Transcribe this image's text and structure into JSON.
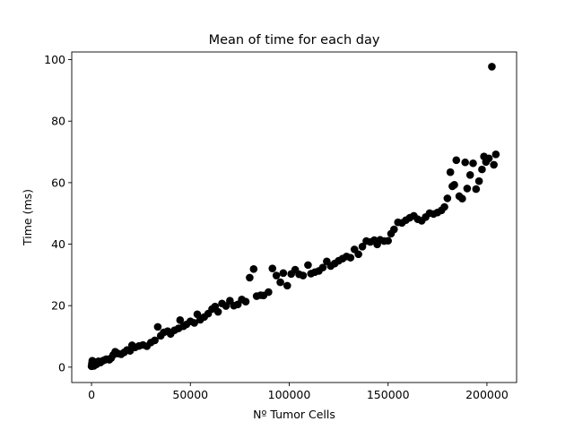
{
  "chart_data": {
    "type": "scatter",
    "title": "Mean of time for each day",
    "xlabel": "Nº Tumor Cells",
    "ylabel": "Time (ms)",
    "xlim": [
      -10000,
      215000
    ],
    "ylim": [
      -5,
      102.5
    ],
    "xticks": [
      0,
      50000,
      100000,
      150000,
      200000
    ],
    "yticks": [
      0,
      20,
      40,
      60,
      80,
      100
    ],
    "marker_color": "#000000",
    "series": [
      {
        "points": [
          [
            0,
            0.3
          ],
          [
            200,
            1.2
          ],
          [
            400,
            2.1
          ],
          [
            600,
            0.8
          ],
          [
            900,
            1.7
          ],
          [
            1200,
            0.4
          ],
          [
            1500,
            1.0
          ],
          [
            2000,
            1.6
          ],
          [
            2500,
            0.9
          ],
          [
            3000,
            1.4
          ],
          [
            3500,
            1.9
          ],
          [
            4500,
            1.5
          ],
          [
            5500,
            2.0
          ],
          [
            6500,
            2.3
          ],
          [
            7500,
            2.6
          ],
          [
            9000,
            2.4
          ],
          [
            10000,
            3.0
          ],
          [
            11000,
            4.0
          ],
          [
            12000,
            5.0
          ],
          [
            13500,
            4.4
          ],
          [
            15000,
            4.2
          ],
          [
            16500,
            4.8
          ],
          [
            18000,
            5.6
          ],
          [
            19500,
            5.3
          ],
          [
            20500,
            7.1
          ],
          [
            22000,
            6.4
          ],
          [
            24000,
            6.9
          ],
          [
            26000,
            7.2
          ],
          [
            28000,
            6.8
          ],
          [
            30000,
            8.0
          ],
          [
            32000,
            8.7
          ],
          [
            33500,
            13.1
          ],
          [
            35000,
            10.2
          ],
          [
            36500,
            11.3
          ],
          [
            38500,
            11.7
          ],
          [
            40000,
            10.8
          ],
          [
            42000,
            12.0
          ],
          [
            44000,
            12.6
          ],
          [
            44800,
            15.3
          ],
          [
            46500,
            13.3
          ],
          [
            48000,
            13.9
          ],
          [
            50000,
            14.9
          ],
          [
            52000,
            14.4
          ],
          [
            53500,
            17.2
          ],
          [
            55000,
            15.4
          ],
          [
            57000,
            16.3
          ],
          [
            59000,
            17.4
          ],
          [
            61000,
            18.9
          ],
          [
            62500,
            19.7
          ],
          [
            64000,
            18.0
          ],
          [
            66000,
            20.7
          ],
          [
            68000,
            19.9
          ],
          [
            70000,
            21.6
          ],
          [
            72000,
            20.0
          ],
          [
            74000,
            20.4
          ],
          [
            76000,
            22.0
          ],
          [
            78000,
            21.3
          ],
          [
            80000,
            29.1
          ],
          [
            82000,
            31.9
          ],
          [
            83500,
            23.1
          ],
          [
            85500,
            23.4
          ],
          [
            87000,
            23.3
          ],
          [
            89500,
            24.4
          ],
          [
            91500,
            32.1
          ],
          [
            93500,
            29.8
          ],
          [
            95500,
            27.6
          ],
          [
            97000,
            30.6
          ],
          [
            99000,
            26.5
          ],
          [
            101000,
            30.3
          ],
          [
            103000,
            31.7
          ],
          [
            105000,
            30.2
          ],
          [
            107000,
            29.8
          ],
          [
            109500,
            33.2
          ],
          [
            111000,
            30.4
          ],
          [
            113000,
            30.9
          ],
          [
            115000,
            31.3
          ],
          [
            117000,
            32.4
          ],
          [
            119000,
            34.4
          ],
          [
            121000,
            32.9
          ],
          [
            123000,
            33.7
          ],
          [
            125000,
            34.6
          ],
          [
            127000,
            35.3
          ],
          [
            129000,
            36.0
          ],
          [
            131000,
            35.6
          ],
          [
            133000,
            38.3
          ],
          [
            135000,
            36.7
          ],
          [
            137000,
            39.2
          ],
          [
            139000,
            41.0
          ],
          [
            141000,
            40.7
          ],
          [
            143000,
            41.3
          ],
          [
            144500,
            39.9
          ],
          [
            146000,
            41.4
          ],
          [
            148000,
            41.0
          ],
          [
            150000,
            41.1
          ],
          [
            151500,
            43.4
          ],
          [
            153000,
            44.8
          ],
          [
            155000,
            47.1
          ],
          [
            157000,
            46.9
          ],
          [
            159000,
            47.8
          ],
          [
            161000,
            48.6
          ],
          [
            163000,
            49.2
          ],
          [
            165000,
            48.1
          ],
          [
            167000,
            47.6
          ],
          [
            169000,
            48.8
          ],
          [
            171000,
            50.1
          ],
          [
            173000,
            49.8
          ],
          [
            175000,
            50.3
          ],
          [
            177000,
            51.0
          ],
          [
            178500,
            52.1
          ],
          [
            180000,
            54.9
          ],
          [
            181500,
            63.4
          ],
          [
            182500,
            58.8
          ],
          [
            183500,
            59.3
          ],
          [
            184500,
            67.3
          ],
          [
            186000,
            55.6
          ],
          [
            187500,
            54.8
          ],
          [
            189000,
            66.6
          ],
          [
            190000,
            58.1
          ],
          [
            191500,
            62.5
          ],
          [
            193000,
            66.3
          ],
          [
            194500,
            57.9
          ],
          [
            196000,
            60.5
          ],
          [
            197500,
            64.3
          ],
          [
            198500,
            68.5
          ],
          [
            199500,
            66.7
          ],
          [
            201000,
            67.9
          ],
          [
            202500,
            97.7
          ],
          [
            203500,
            65.8
          ],
          [
            204500,
            69.2
          ]
        ]
      }
    ]
  }
}
